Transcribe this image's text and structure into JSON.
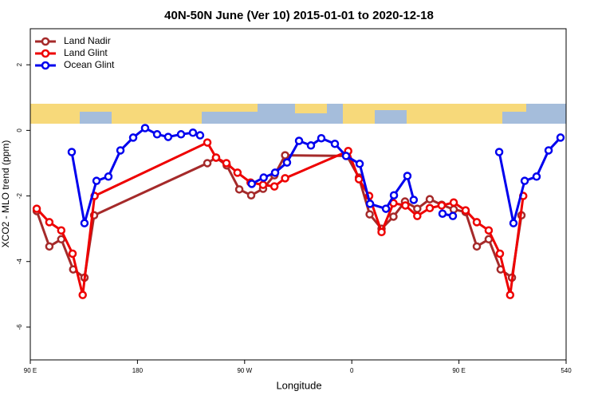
{
  "chart_data": {
    "type": "line",
    "title": "40N-50N June (Ver 10)   2015-01-01 to 2020-12-18",
    "x_label": "Longitude",
    "y_label": "XCO2 - MLO trend (ppm)",
    "xlim": [
      90,
      540
    ],
    "ylim": [
      -7,
      3.1
    ],
    "xticks": [
      {
        "value": 90,
        "label": "90 E"
      },
      180,
      {
        "value": 270,
        "label": "90 W"
      },
      {
        "value": 360,
        "label": "0"
      },
      {
        "value": 450,
        "label": "90 E"
      },
      540
    ],
    "yticks": [
      -6,
      -4,
      -2,
      0,
      2
    ],
    "grid": false,
    "legend": "top-left",
    "series": [
      {
        "name": "Land Nadir",
        "color": "#a52a2a",
        "x": [
          95.4,
          106,
          116,
          126,
          135.5,
          143.6,
          238.7,
          246,
          255,
          265.5,
          275.5,
          285.5,
          295,
          304,
          356,
          366,
          375,
          385,
          395,
          404.7,
          415,
          425.5,
          435.5,
          445.6,
          455.6,
          465,
          475,
          485,
          494.5,
          502.5
        ],
        "values": [
          -2.46,
          -3.54,
          -3.32,
          -4.24,
          -4.49,
          -2.59,
          -1.0,
          -0.83,
          -1.07,
          -1.8,
          -1.98,
          -1.78,
          -1.37,
          -0.76,
          -0.78,
          -1.44,
          -2.56,
          -3.0,
          -2.63,
          -2.17,
          -2.39,
          -2.1,
          -2.27,
          -2.41,
          -2.49,
          -3.54,
          -3.32,
          -4.24,
          -4.49,
          -2.59
        ]
      },
      {
        "name": "Land Glint",
        "color": "#ee0000",
        "x": [
          95.4,
          106,
          116,
          125.5,
          134,
          144,
          238.7,
          246,
          254.7,
          264,
          275,
          285.5,
          295,
          304,
          357,
          366,
          374.6,
          385,
          395,
          405,
          415,
          425.5,
          435.5,
          445.6,
          455.6,
          465,
          475,
          484.4,
          493,
          504
        ],
        "values": [
          -2.39,
          -2.8,
          -3.05,
          -3.76,
          -5.02,
          -2.0,
          -0.37,
          -0.83,
          -1.0,
          -1.29,
          -1.59,
          -1.66,
          -1.71,
          -1.46,
          -0.63,
          -1.49,
          -2.0,
          -3.1,
          -2.22,
          -2.29,
          -2.61,
          -2.37,
          -2.29,
          -2.2,
          -2.44,
          -2.8,
          -3.05,
          -3.76,
          -5.02,
          -2.0
        ]
      },
      {
        "name": "Ocean Glint",
        "color": "#0000ee",
        "x": [
          124.8,
          135.5,
          145.6,
          155.6,
          165.7,
          176.4,
          186.4,
          196.5,
          205.8,
          216.6,
          226.6,
          232.6,
          250,
          276,
          286,
          295.6,
          305.6,
          315.7,
          325.7,
          334.4,
          345.8,
          355.2,
          366.6,
          375.3,
          388.7,
          395.4,
          406.7,
          412,
          425,
          436.2,
          444.9,
          465,
          483.8,
          495.8,
          505.2,
          515.2,
          525.3,
          535.3
        ],
        "values": [
          -0.66,
          -2.83,
          -1.54,
          -1.41,
          -0.61,
          -0.22,
          0.07,
          -0.12,
          -0.2,
          -0.12,
          -0.07,
          -0.15,
          null,
          -1.63,
          -1.44,
          -1.29,
          -0.98,
          -0.32,
          -0.46,
          -0.24,
          -0.41,
          -0.78,
          -1.02,
          -2.24,
          -2.39,
          -1.98,
          -1.39,
          -2.12,
          null,
          -2.54,
          -2.61,
          null,
          -0.66,
          -2.83,
          -1.54,
          -1.41,
          -0.61,
          -0.22
        ]
      }
    ]
  }
}
